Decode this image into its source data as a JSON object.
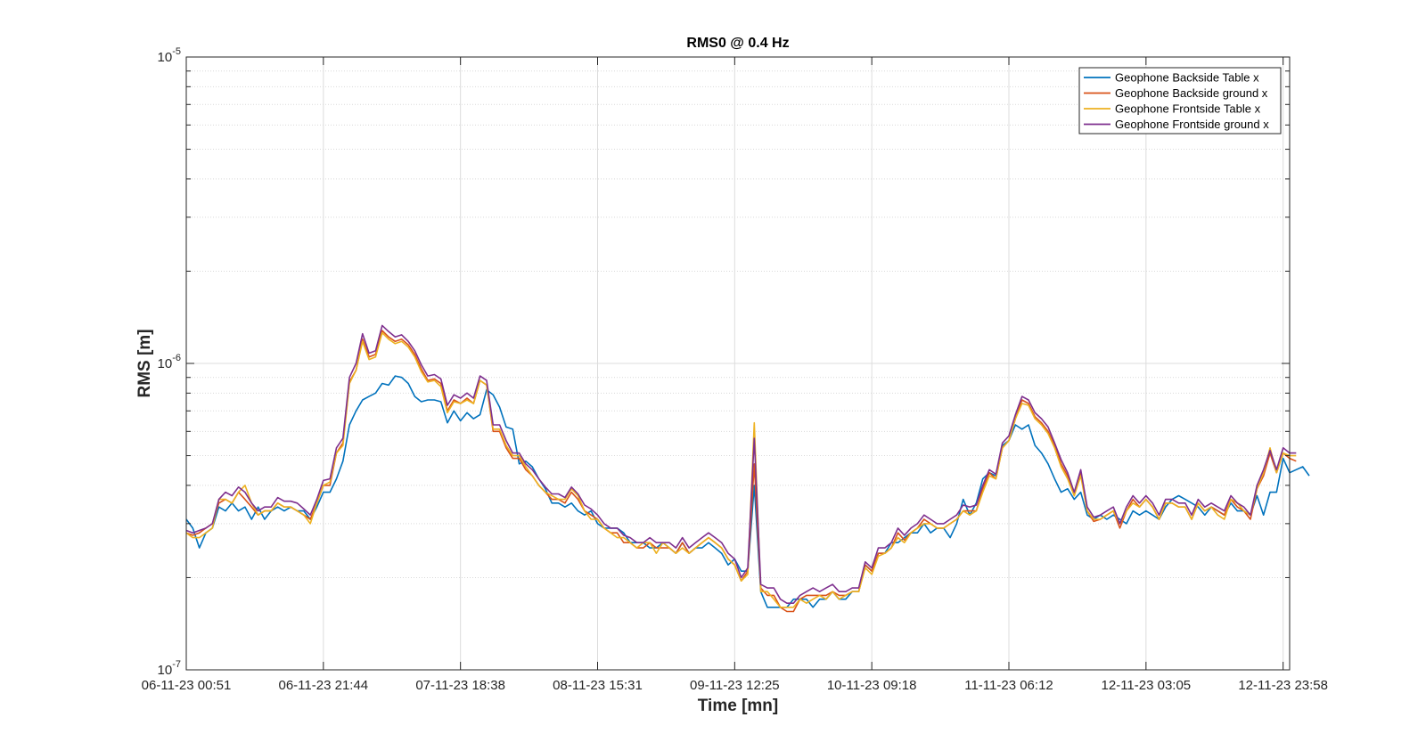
{
  "chart_data": {
    "type": "line",
    "title": "RMS0 @ 0.4 Hz",
    "xlabel": "Time [mn]",
    "ylabel": "RMS [m]",
    "yscale": "log",
    "ylim": [
      1e-07,
      1e-05
    ],
    "xlim": [
      0,
      169
    ],
    "y_ticks": [
      {
        "base": "10",
        "exp": "-7",
        "value": 1e-07
      },
      {
        "base": "10",
        "exp": "-6",
        "value": 1e-06
      },
      {
        "base": "10",
        "exp": "-5",
        "value": 1e-05
      }
    ],
    "x_ticks": [
      {
        "x": 0,
        "label": "06-11-23 00:51"
      },
      {
        "x": 21,
        "label": "06-11-23 21:44"
      },
      {
        "x": 42,
        "label": "07-11-23 18:38"
      },
      {
        "x": 63,
        "label": "08-11-23 15:31"
      },
      {
        "x": 84,
        "label": "09-11-23 12:25"
      },
      {
        "x": 105,
        "label": "10-11-23 09:18"
      },
      {
        "x": 126,
        "label": "11-11-23 06:12"
      },
      {
        "x": 147,
        "label": "12-11-23 03:05"
      },
      {
        "x": 168,
        "label": "12-11-23 23:58"
      }
    ],
    "grid": "on",
    "legend_position": "top-right",
    "x_step": 1,
    "series": [
      {
        "name": "Geophone Backside Table x",
        "color": "#0072BD",
        "values": [
          3.1e-07,
          2.9e-07,
          2.5e-07,
          2.8e-07,
          2.9e-07,
          3.4e-07,
          3.3e-07,
          3.5e-07,
          3.3e-07,
          3.4e-07,
          3.1e-07,
          3.4e-07,
          3.1e-07,
          3.3e-07,
          3.4e-07,
          3.3e-07,
          3.4e-07,
          3.3e-07,
          3.3e-07,
          3.1e-07,
          3.4e-07,
          3.8e-07,
          3.8e-07,
          4.2e-07,
          4.8e-07,
          6.3e-07,
          7e-07,
          7.6e-07,
          7.8e-07,
          8e-07,
          8.6e-07,
          8.5e-07,
          9.1e-07,
          9e-07,
          8.6e-07,
          7.8e-07,
          7.5e-07,
          7.6e-07,
          7.6e-07,
          7.5e-07,
          6.4e-07,
          7e-07,
          6.5e-07,
          6.9e-07,
          6.6e-07,
          6.8e-07,
          8.2e-07,
          7.9e-07,
          7.2e-07,
          6.2e-07,
          6.1e-07,
          4.7e-07,
          4.8e-07,
          4.6e-07,
          4.2e-07,
          3.9e-07,
          3.5e-07,
          3.5e-07,
          3.4e-07,
          3.5e-07,
          3.3e-07,
          3.2e-07,
          3.3e-07,
          3e-07,
          2.9e-07,
          2.9e-07,
          2.9e-07,
          2.8e-07,
          2.6e-07,
          2.6e-07,
          2.6e-07,
          2.5e-07,
          2.5e-07,
          2.6e-07,
          2.5e-07,
          2.4e-07,
          2.6e-07,
          2.4e-07,
          2.5e-07,
          2.5e-07,
          2.6e-07,
          2.5e-07,
          2.4e-07,
          2.2e-07,
          2.3e-07,
          2.1e-07,
          2.1e-07,
          4e-07,
          1.8e-07,
          1.6e-07,
          1.6e-07,
          1.6e-07,
          1.6e-07,
          1.7e-07,
          1.7e-07,
          1.7e-07,
          1.6e-07,
          1.7e-07,
          1.7e-07,
          1.8e-07,
          1.7e-07,
          1.7e-07,
          1.8e-07,
          1.8e-07,
          2.2e-07,
          2.1e-07,
          2.4e-07,
          2.4e-07,
          2.6e-07,
          2.6e-07,
          2.7e-07,
          2.8e-07,
          2.8e-07,
          3e-07,
          2.8e-07,
          2.9e-07,
          2.9e-07,
          2.7e-07,
          3e-07,
          3.6e-07,
          3.2e-07,
          3.5e-07,
          4.2e-07,
          4.4e-07,
          4.3e-07,
          5.4e-07,
          5.6e-07,
          6.3e-07,
          6.1e-07,
          6.3e-07,
          5.4e-07,
          5.1e-07,
          4.7e-07,
          4.2e-07,
          3.8e-07,
          3.9e-07,
          3.6e-07,
          3.8e-07,
          3.2e-07,
          3.1e-07,
          3.2e-07,
          3.1e-07,
          3.2e-07,
          3.1e-07,
          3e-07,
          3.3e-07,
          3.2e-07,
          3.3e-07,
          3.2e-07,
          3.1e-07,
          3.4e-07,
          3.6e-07,
          3.7e-07,
          3.6e-07,
          3.5e-07,
          3.4e-07,
          3.2e-07,
          3.4e-07,
          3.3e-07,
          3.2e-07,
          3.5e-07,
          3.3e-07,
          3.3e-07,
          3.2e-07,
          3.7e-07,
          3.2e-07,
          3.8e-07,
          3.8e-07,
          4.9e-07,
          4.4e-07,
          4.5e-07,
          4.6e-07,
          4.3e-07
        ]
      },
      {
        "name": "Geophone Backside ground x",
        "color": "#D95319",
        "values": [
          2.8e-07,
          2.75e-07,
          2.8e-07,
          2.9e-07,
          3e-07,
          3.5e-07,
          3.6e-07,
          3.5e-07,
          3.8e-07,
          3.6e-07,
          3.4e-07,
          3.2e-07,
          3.3e-07,
          3.3e-07,
          3.5e-07,
          3.4e-07,
          3.4e-07,
          3.3e-07,
          3.2e-07,
          3.1e-07,
          3.5e-07,
          4e-07,
          4e-07,
          5.1e-07,
          5.5e-07,
          8.7e-07,
          9.5e-07,
          1.2e-06,
          1.05e-06,
          1.07e-06,
          1.28e-06,
          1.22e-06,
          1.18e-06,
          1.2e-06,
          1.15e-06,
          1.07e-06,
          9.6e-07,
          8.8e-07,
          8.9e-07,
          8.6e-07,
          7e-07,
          7.6e-07,
          7.4e-07,
          7.7e-07,
          7.4e-07,
          8.8e-07,
          8.5e-07,
          6e-07,
          6e-07,
          5.3e-07,
          4.9e-07,
          4.9e-07,
          4.5e-07,
          4.3e-07,
          4e-07,
          3.8e-07,
          3.6e-07,
          3.6e-07,
          3.5e-07,
          3.8e-07,
          3.6e-07,
          3.3e-07,
          3.2e-07,
          3.1e-07,
          2.9e-07,
          2.8e-07,
          2.8e-07,
          2.6e-07,
          2.6e-07,
          2.5e-07,
          2.5e-07,
          2.6e-07,
          2.5e-07,
          2.5e-07,
          2.5e-07,
          2.4e-07,
          2.6e-07,
          2.4e-07,
          2.5e-07,
          2.6e-07,
          2.7e-07,
          2.6e-07,
          2.5e-07,
          2.3e-07,
          2.2e-07,
          1.95e-07,
          2.1e-07,
          4.7e-07,
          1.85e-07,
          1.75e-07,
          1.75e-07,
          1.6e-07,
          1.55e-07,
          1.55e-07,
          1.7e-07,
          1.75e-07,
          1.75e-07,
          1.75e-07,
          1.75e-07,
          1.8e-07,
          1.75e-07,
          1.75e-07,
          1.8e-07,
          1.8e-07,
          2.2e-07,
          2.1e-07,
          2.4e-07,
          2.4e-07,
          2.5e-07,
          2.8e-07,
          2.65e-07,
          2.8e-07,
          2.9e-07,
          3.1e-07,
          3e-07,
          2.9e-07,
          2.9e-07,
          3e-07,
          3.1e-07,
          3.3e-07,
          3.3e-07,
          3.3e-07,
          3.9e-07,
          4.4e-07,
          4.2e-07,
          5.3e-07,
          5.6e-07,
          6.6e-07,
          7.6e-07,
          7.4e-07,
          6.7e-07,
          6.4e-07,
          6e-07,
          5.4e-07,
          4.7e-07,
          4.3e-07,
          3.7e-07,
          4.4e-07,
          3.3e-07,
          3.05e-07,
          3.1e-07,
          3.2e-07,
          3.3e-07,
          2.9e-07,
          3.3e-07,
          3.6e-07,
          3.4e-07,
          3.6e-07,
          3.4e-07,
          3.1e-07,
          3.5e-07,
          3.5e-07,
          3.4e-07,
          3.4e-07,
          3.1e-07,
          3.5e-07,
          3.3e-07,
          3.4e-07,
          3.3e-07,
          3.2e-07,
          3.6e-07,
          3.4e-07,
          3.3e-07,
          3.1e-07,
          3.9e-07,
          4.3e-07,
          5.1e-07,
          4.4e-07,
          5.1e-07,
          4.9e-07,
          4.8e-07
        ]
      },
      {
        "name": "Geophone Frontside Table x",
        "color": "#EDB120",
        "values": [
          2.8e-07,
          2.7e-07,
          2.7e-07,
          2.8e-07,
          2.9e-07,
          3.6e-07,
          3.6e-07,
          3.5e-07,
          3.8e-07,
          4e-07,
          3.5e-07,
          3.2e-07,
          3.3e-07,
          3.3e-07,
          3.5e-07,
          3.4e-07,
          3.4e-07,
          3.3e-07,
          3.2e-07,
          3e-07,
          3.5e-07,
          4e-07,
          4.1e-07,
          5.1e-07,
          5.4e-07,
          8.6e-07,
          9.5e-07,
          1.18e-06,
          1.03e-06,
          1.05e-06,
          1.26e-06,
          1.2e-06,
          1.16e-06,
          1.18e-06,
          1.13e-06,
          1.05e-06,
          9.4e-07,
          8.7e-07,
          8.8e-07,
          8.4e-07,
          6.9e-07,
          7.5e-07,
          7.4e-07,
          7.6e-07,
          7.4e-07,
          8.8e-07,
          8.5e-07,
          6.1e-07,
          6.1e-07,
          5.4e-07,
          5e-07,
          5e-07,
          4.6e-07,
          4.3e-07,
          4e-07,
          3.8e-07,
          3.7e-07,
          3.6e-07,
          3.6e-07,
          3.9e-07,
          3.7e-07,
          3.3e-07,
          3.1e-07,
          3.1e-07,
          2.9e-07,
          2.8e-07,
          2.7e-07,
          2.7e-07,
          2.6e-07,
          2.5e-07,
          2.6e-07,
          2.6e-07,
          2.4e-07,
          2.6e-07,
          2.5e-07,
          2.4e-07,
          2.5e-07,
          2.4e-07,
          2.5e-07,
          2.6e-07,
          2.7e-07,
          2.6e-07,
          2.5e-07,
          2.3e-07,
          2.2e-07,
          1.95e-07,
          2.05e-07,
          6.4e-07,
          1.8e-07,
          1.8e-07,
          1.7e-07,
          1.6e-07,
          1.6e-07,
          1.6e-07,
          1.7e-07,
          1.65e-07,
          1.7e-07,
          1.75e-07,
          1.7e-07,
          1.8e-07,
          1.7e-07,
          1.75e-07,
          1.8e-07,
          1.8e-07,
          2.15e-07,
          2.05e-07,
          2.35e-07,
          2.4e-07,
          2.5e-07,
          2.7e-07,
          2.6e-07,
          2.8e-07,
          2.9e-07,
          3e-07,
          3e-07,
          2.9e-07,
          2.9e-07,
          3e-07,
          3.1e-07,
          3.3e-07,
          3.2e-07,
          3.3e-07,
          3.8e-07,
          4.3e-07,
          4.2e-07,
          5.3e-07,
          5.6e-07,
          6.6e-07,
          7.4e-07,
          7.3e-07,
          6.6e-07,
          6.3e-07,
          5.9e-07,
          5.3e-07,
          4.6e-07,
          4.2e-07,
          3.7e-07,
          4.3e-07,
          3.3e-07,
          3.1e-07,
          3.1e-07,
          3.2e-07,
          3.3e-07,
          3e-07,
          3.3e-07,
          3.5e-07,
          3.4e-07,
          3.6e-07,
          3.4e-07,
          3.1e-07,
          3.5e-07,
          3.5e-07,
          3.4e-07,
          3.4e-07,
          3.1e-07,
          3.5e-07,
          3.3e-07,
          3.4e-07,
          3.2e-07,
          3.1e-07,
          3.6e-07,
          3.5e-07,
          3.3e-07,
          3.2e-07,
          3.9e-07,
          4.4e-07,
          5.3e-07,
          4.4e-07,
          5.1e-07,
          5e-07,
          5e-07
        ]
      },
      {
        "name": "Geophone Frontside ground x",
        "color": "#7E2F8E",
        "values": [
          2.85e-07,
          2.8e-07,
          2.85e-07,
          2.9e-07,
          3e-07,
          3.6e-07,
          3.8e-07,
          3.7e-07,
          3.95e-07,
          3.8e-07,
          3.5e-07,
          3.3e-07,
          3.4e-07,
          3.4e-07,
          3.65e-07,
          3.55e-07,
          3.55e-07,
          3.5e-07,
          3.35e-07,
          3.2e-07,
          3.6e-07,
          4.15e-07,
          4.2e-07,
          5.3e-07,
          5.7e-07,
          9e-07,
          1e-06,
          1.25e-06,
          1.08e-06,
          1.1e-06,
          1.33e-06,
          1.27e-06,
          1.22e-06,
          1.24e-06,
          1.18e-06,
          1.1e-06,
          9.9e-07,
          9.1e-07,
          9.2e-07,
          8.9e-07,
          7.3e-07,
          7.9e-07,
          7.7e-07,
          8e-07,
          7.7e-07,
          9.1e-07,
          8.8e-07,
          6.3e-07,
          6.3e-07,
          5.6e-07,
          5.1e-07,
          5.1e-07,
          4.7e-07,
          4.5e-07,
          4.2e-07,
          3.95e-07,
          3.75e-07,
          3.75e-07,
          3.65e-07,
          3.95e-07,
          3.75e-07,
          3.45e-07,
          3.35e-07,
          3.2e-07,
          3e-07,
          2.9e-07,
          2.9e-07,
          2.75e-07,
          2.7e-07,
          2.6e-07,
          2.6e-07,
          2.7e-07,
          2.6e-07,
          2.6e-07,
          2.6e-07,
          2.5e-07,
          2.7e-07,
          2.5e-07,
          2.6e-07,
          2.7e-07,
          2.8e-07,
          2.7e-07,
          2.6e-07,
          2.4e-07,
          2.3e-07,
          2e-07,
          2.15e-07,
          5.7e-07,
          1.9e-07,
          1.85e-07,
          1.85e-07,
          1.7e-07,
          1.65e-07,
          1.65e-07,
          1.75e-07,
          1.8e-07,
          1.85e-07,
          1.8e-07,
          1.85e-07,
          1.9e-07,
          1.8e-07,
          1.8e-07,
          1.85e-07,
          1.85e-07,
          2.25e-07,
          2.15e-07,
          2.5e-07,
          2.5e-07,
          2.6e-07,
          2.9e-07,
          2.75e-07,
          2.9e-07,
          3e-07,
          3.2e-07,
          3.1e-07,
          3e-07,
          3e-07,
          3.1e-07,
          3.2e-07,
          3.45e-07,
          3.4e-07,
          3.45e-07,
          4e-07,
          4.5e-07,
          4.35e-07,
          5.5e-07,
          5.8e-07,
          6.8e-07,
          7.8e-07,
          7.6e-07,
          6.9e-07,
          6.6e-07,
          6.2e-07,
          5.5e-07,
          4.85e-07,
          4.4e-07,
          3.8e-07,
          4.5e-07,
          3.4e-07,
          3.15e-07,
          3.2e-07,
          3.3e-07,
          3.4e-07,
          3e-07,
          3.4e-07,
          3.7e-07,
          3.5e-07,
          3.7e-07,
          3.5e-07,
          3.2e-07,
          3.6e-07,
          3.6e-07,
          3.5e-07,
          3.5e-07,
          3.2e-07,
          3.6e-07,
          3.4e-07,
          3.5e-07,
          3.4e-07,
          3.3e-07,
          3.7e-07,
          3.5e-07,
          3.4e-07,
          3.2e-07,
          4e-07,
          4.5e-07,
          5.2e-07,
          4.5e-07,
          5.3e-07,
          5.1e-07,
          5.1e-07
        ]
      }
    ]
  }
}
